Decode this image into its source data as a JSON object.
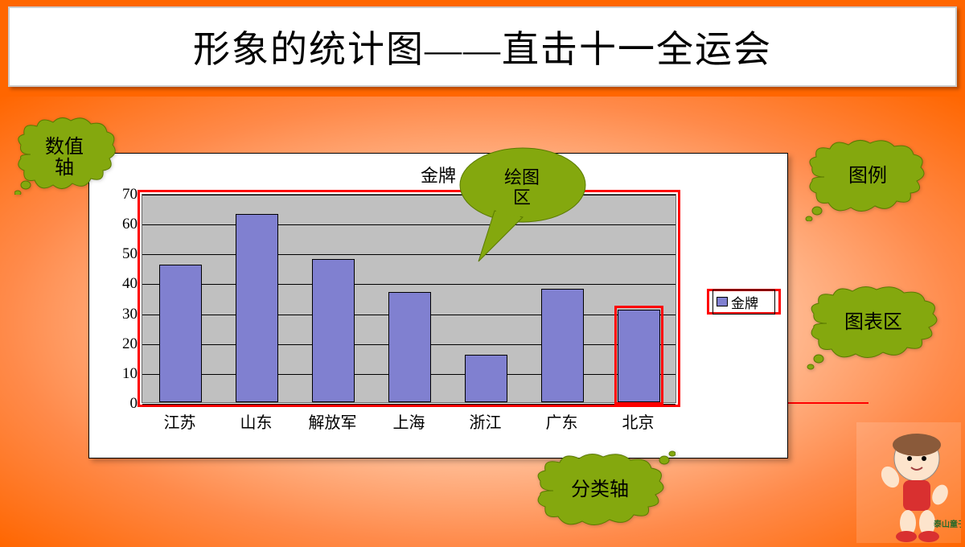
{
  "title": "形象的统计图——直击十一全运会",
  "chart": {
    "type": "bar",
    "title": "金牌",
    "categories": [
      "江苏",
      "山东",
      "解放军",
      "上海",
      "浙江",
      "广东",
      "北京"
    ],
    "values": [
      46,
      63,
      48,
      37,
      16,
      38,
      31
    ],
    "bar_color": "#8080d0",
    "bar_border": "#000000",
    "plot_bg": "#c0c0c0",
    "chart_bg": "#ffffff",
    "grid_color": "#000000",
    "ylim": [
      0,
      70
    ],
    "ytick_step": 10,
    "yticks": [
      0,
      10,
      20,
      30,
      40,
      50,
      60,
      70
    ],
    "legend": {
      "label": "金牌",
      "swatch": "#8080d0",
      "border_highlight": "#ff0000"
    },
    "highlight_border": "#ff0000",
    "highlighted_bar_index": 6,
    "label_fontsize": 19,
    "title_fontsize": 22
  },
  "annotations": {
    "value_axis": "数值\n轴",
    "plot_region": "绘图\n区",
    "legend_region": "图例",
    "chart_region": "图表区",
    "category_axis": "分类轴"
  },
  "colors": {
    "page_border": "#ff6600",
    "gradient_inner": "#ffffff",
    "gradient_outer": "#ff6600",
    "cloud_fill": "#84a80e",
    "cloud_stroke": "#5a7a00",
    "callout_fill": "#84a80e",
    "red": "#ff0000"
  }
}
